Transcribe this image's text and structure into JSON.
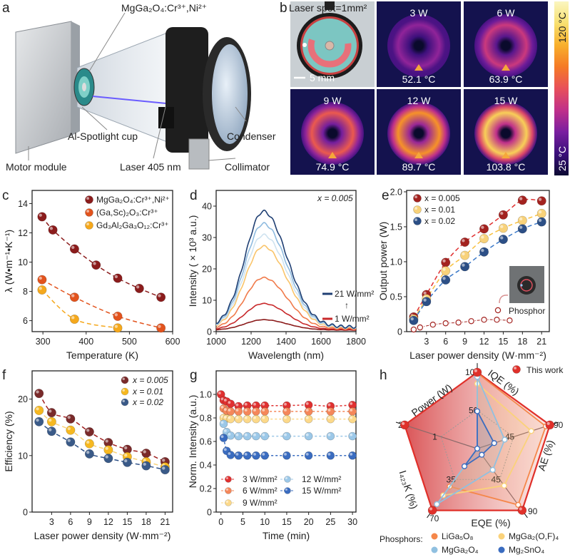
{
  "panel_labels": [
    "a",
    "b",
    "c",
    "d",
    "e",
    "f",
    "g",
    "h"
  ],
  "panel_a": {
    "title": "MgGa₂O₄:Cr³⁺,Ni²⁺",
    "labels": {
      "cup": "Al-Spotlight cup",
      "condenser": "Condenser",
      "motor": "Motor module",
      "laser": "Laser 405 nm",
      "collimator": "Collimator"
    }
  },
  "panel_b": {
    "photo_label": "Laser spot=1mm²",
    "scale_bar": "5 mm",
    "thermal": [
      {
        "power": "3 W",
        "temp": "52.1 °C",
        "level": 0.29
      },
      {
        "power": "6 W",
        "temp": "63.9 °C",
        "level": 0.41
      },
      {
        "power": "9 W",
        "temp": "74.9 °C",
        "level": 0.53
      },
      {
        "power": "12 W",
        "temp": "89.7 °C",
        "level": 0.68
      },
      {
        "power": "15 W",
        "temp": "103.8 °C",
        "level": 0.83
      }
    ],
    "colorbar": {
      "max": "120 °C",
      "min": "25 °C",
      "colors": [
        "#0c0a32",
        "#3a0f7a",
        "#7a1fa0",
        "#c0308a",
        "#e8505a",
        "#f57a26",
        "#f8b02c",
        "#f8e070",
        "#faf6c0"
      ]
    }
  },
  "chart_data": [
    {
      "panel": "c",
      "type": "scatter",
      "xlabel": "Temperature (K)",
      "ylabel": "λ (W•m⁻¹•K⁻¹)",
      "xlim": [
        275,
        600
      ],
      "ylim": [
        5.25,
        14.9
      ],
      "xticks": [
        "300",
        "400",
        "500",
        "600"
      ],
      "yticks": [
        "6",
        "8",
        "10",
        "12",
        "14"
      ],
      "legend": "top-right",
      "fit": "dashed",
      "series": [
        {
          "name": "MgGa₂O₄:Cr³⁺,Ni²⁺",
          "color": "#8b1c1c",
          "x": [
            298,
            323,
            373,
            423,
            473,
            523,
            573
          ],
          "y": [
            13.1,
            12.2,
            10.9,
            9.8,
            8.9,
            8.2,
            7.6
          ]
        },
        {
          "name": "(Ga,Sc)₂O₃:Cr³⁺",
          "color": "#e2531d",
          "x": [
            298,
            373,
            473,
            573
          ],
          "y": [
            8.8,
            7.6,
            6.3,
            5.5
          ]
        },
        {
          "name": "Gd₃Al₂Ga₃O₁₂:Cr³⁺",
          "color": "#f5a81c",
          "x": [
            298,
            373,
            473
          ],
          "y": [
            8.1,
            6.1,
            5.5
          ]
        }
      ]
    },
    {
      "panel": "d",
      "type": "line",
      "xlabel": "Wavelength (nm)",
      "ylabel": "Intensity ( × 10³ a.u.)",
      "xlim": [
        1000,
        1800
      ],
      "ylim": [
        0,
        45
      ],
      "xticks": [
        "1000",
        "1200",
        "1400",
        "1600",
        "1800"
      ],
      "yticks": [
        "0",
        "10",
        "20",
        "30",
        "40"
      ],
      "annotation": "x = 0.005",
      "legend": {
        "high": "21 W/mm²",
        "arrow": "↑",
        "low": "1 W/mm²"
      },
      "peak_nm": 1270,
      "series": [
        {
          "peak": 3.3,
          "color": "#8b1a1a"
        },
        {
          "peak": 8.3,
          "color": "#c8282a"
        },
        {
          "peak": 16.3,
          "color": "#f07a4a"
        },
        {
          "peak": 26.0,
          "color": "#f9c46a"
        },
        {
          "peak": 29.5,
          "color": "#cfe3f0"
        },
        {
          "peak": 33.0,
          "color": "#8fbbdf"
        },
        {
          "peak": 36.8,
          "color": "#1f3f73"
        }
      ]
    },
    {
      "panel": "e",
      "type": "scatter",
      "xlabel": "Laser power density (W·mm⁻²)",
      "ylabel": "Output power (W)",
      "xlim": [
        -0.1,
        22.2
      ],
      "ylim": [
        0,
        2.02
      ],
      "xticks": [
        "3",
        "6",
        "9",
        "12",
        "15",
        "18",
        "21"
      ],
      "yticks": [
        "0",
        "0.5",
        "1.0",
        "1.5",
        "2.0"
      ],
      "legend": "top-left",
      "fit": "dashed",
      "series": [
        {
          "name": "x = 0.005",
          "color": "#a3221f",
          "line": "#e03030",
          "x": [
            1,
            3,
            6,
            9,
            12,
            15,
            18,
            21
          ],
          "y": [
            0.21,
            0.53,
            0.99,
            1.28,
            1.47,
            1.67,
            1.88,
            1.87
          ]
        },
        {
          "name": "x = 0.01",
          "color": "#f8d27a",
          "line": "#f8c040",
          "x": [
            1,
            3,
            6,
            9,
            12,
            15,
            18,
            21
          ],
          "y": [
            0.18,
            0.47,
            0.87,
            1.09,
            1.33,
            1.48,
            1.59,
            1.69
          ]
        },
        {
          "name": "x = 0.02",
          "color": "#2c4f86",
          "line": "#3a78c8",
          "x": [
            1,
            3,
            6,
            9,
            12,
            15,
            18,
            21
          ],
          "y": [
            0.16,
            0.43,
            0.74,
            0.93,
            1.14,
            1.32,
            1.47,
            1.57
          ]
        }
      ],
      "reference": {
        "name": "Phosphor",
        "color": "#a3221f",
        "x": [
          1,
          2,
          4,
          6,
          8,
          10,
          12,
          14,
          16
        ],
        "y": [
          0.03,
          0.06,
          0.1,
          0.12,
          0.13,
          0.15,
          0.17,
          0.17,
          0.16
        ]
      }
    },
    {
      "panel": "f",
      "type": "scatter",
      "xlabel": "Laser power density (W·mm⁻²)",
      "ylabel": "Efficiency (%)",
      "xlim": [
        -0.1,
        22.2
      ],
      "ylim": [
        0,
        25
      ],
      "xticks": [
        "3",
        "6",
        "9",
        "12",
        "15",
        "18",
        "21"
      ],
      "yticks": [
        "0",
        "10",
        "20"
      ],
      "legend": "top-right",
      "fit": "dashed",
      "series": [
        {
          "name": "x = 0.005",
          "color": "#7a2a2a",
          "line": "#a02020",
          "x": [
            1,
            3,
            6,
            9,
            12,
            15,
            18,
            21
          ],
          "y": [
            21,
            17.6,
            16.5,
            14.2,
            12.3,
            11.1,
            10.4,
            8.9
          ]
        },
        {
          "name": "x = 0.01",
          "color": "#f6b820",
          "line": "#f8d27a",
          "x": [
            1,
            3,
            6,
            9,
            12,
            15,
            18,
            21
          ],
          "y": [
            18,
            16,
            14.5,
            12.1,
            11,
            9.8,
            8.9,
            8.0
          ]
        },
        {
          "name": "x = 0.02",
          "color": "#3a5a88",
          "line": "#2c4f86",
          "x": [
            1,
            3,
            6,
            9,
            12,
            15,
            18,
            21
          ],
          "y": [
            16,
            14.3,
            12.4,
            10.3,
            9.5,
            8.8,
            8.2,
            7.5
          ]
        }
      ]
    },
    {
      "panel": "g",
      "type": "line",
      "xlabel": "Time (min)",
      "ylabel": "Norm. Intensity (a.u.)",
      "xlim": [
        -1.1,
        30.8
      ],
      "ylim": [
        0,
        1.2
      ],
      "xticks": [
        "0",
        "5",
        "10",
        "15",
        "20",
        "25",
        "30"
      ],
      "yticks": [
        "0",
        "0.2",
        "0.4",
        "0.6",
        "0.8",
        "1.0"
      ],
      "legend": "bottom-left",
      "series": [
        {
          "name": "3 W/mm²",
          "color": "#e03030",
          "x": [
            0,
            0.6,
            1.3,
            2.2,
            4,
            6,
            8,
            10,
            15,
            20,
            25,
            30
          ],
          "y": [
            1.0,
            0.95,
            0.94,
            0.92,
            0.9,
            0.905,
            0.905,
            0.905,
            0.905,
            0.91,
            0.9,
            0.91
          ]
        },
        {
          "name": "6 W/mm²",
          "color": "#f5875a",
          "x": [
            0.6,
            1.3,
            2.2,
            4,
            6,
            8,
            10,
            15,
            20,
            25,
            30
          ],
          "y": [
            0.88,
            0.86,
            0.855,
            0.855,
            0.855,
            0.855,
            0.855,
            0.855,
            0.855,
            0.855,
            0.855
          ]
        },
        {
          "name": "9 W/mm²",
          "color": "#fcd98a",
          "x": [
            0.6,
            1.3,
            2.2,
            4,
            6,
            8,
            10,
            15,
            20,
            25,
            30
          ],
          "y": [
            0.8,
            0.795,
            0.79,
            0.79,
            0.79,
            0.79,
            0.79,
            0.79,
            0.79,
            0.79,
            0.79
          ]
        },
        {
          "name": "12 W/mm²",
          "color": "#9cc8e8",
          "x": [
            0.6,
            1.3,
            2.2,
            4,
            6,
            8,
            10,
            15,
            20,
            25,
            30
          ],
          "y": [
            0.75,
            0.68,
            0.65,
            0.645,
            0.645,
            0.645,
            0.645,
            0.645,
            0.645,
            0.645,
            0.645
          ]
        },
        {
          "name": "15 W/mm²",
          "color": "#3a6cc0",
          "x": [
            0.6,
            1.3,
            2.2,
            4,
            6,
            8,
            10,
            15,
            20,
            25,
            30
          ],
          "y": [
            0.63,
            0.52,
            0.485,
            0.48,
            0.48,
            0.48,
            0.48,
            0.48,
            0.48,
            0.48,
            0.48
          ]
        }
      ]
    },
    {
      "panel": "h",
      "type": "radar",
      "axes": [
        {
          "name": "IQE (%)",
          "max": "100",
          "mid": "50"
        },
        {
          "name": "AE (%)",
          "max": "90",
          "mid": "45"
        },
        {
          "name": "EQE (%)",
          "max": "90",
          "mid": "45"
        },
        {
          "name": "I₄₂₃K (%)",
          "max": "70",
          "mid": "35"
        },
        {
          "name": "Power (W)",
          "max": "2",
          "mid": "1"
        }
      ],
      "this_work": {
        "name": "This work",
        "color": "#e0302a",
        "values": [
          100,
          90,
          90,
          70,
          2
        ]
      },
      "legend_title": "Phosphors:",
      "series": [
        {
          "name": "LiGa₅O₈",
          "color": "#f5874a",
          "values": [
            99,
            85,
            82,
            43,
            0
          ]
        },
        {
          "name": "MgGa₂(O,F)₄",
          "color": "#fad27a",
          "values": [
            85,
            67,
            54,
            53,
            0
          ]
        },
        {
          "name": "MgGa₂O₄",
          "color": "#90c0e0",
          "values": [
            94,
            34,
            31,
            63,
            0
          ]
        },
        {
          "name": "Mg₂SnO₄",
          "color": "#3a6cc0",
          "values": [
            49,
            21,
            9,
            20,
            0
          ]
        }
      ]
    }
  ]
}
